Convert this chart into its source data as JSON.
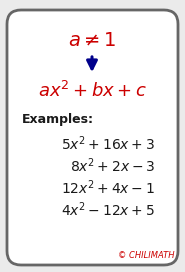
{
  "bg_color": "#ebebeb",
  "card_color": "white",
  "title_text": "$a \\neq 1$",
  "title_color": "#cc0000",
  "formula_text": "$ax^2 + bx + c$",
  "formula_color": "#cc0000",
  "examples_label": "Examples:",
  "examples": [
    "$5x^2 + 16x + 3$",
    "$8x^2 + 2x - 3$",
    "$12x^2 + 4x - 1$",
    "$4x^2 - 12x + 5$"
  ],
  "examples_color": "#1a1a1a",
  "arrow_color": "#00008b",
  "watermark": "© CHILIMATH",
  "watermark_color": "#cc0000",
  "title_fontsize": 14,
  "formula_fontsize": 13,
  "examples_fontsize": 10,
  "label_fontsize": 9,
  "watermark_fontsize": 6
}
